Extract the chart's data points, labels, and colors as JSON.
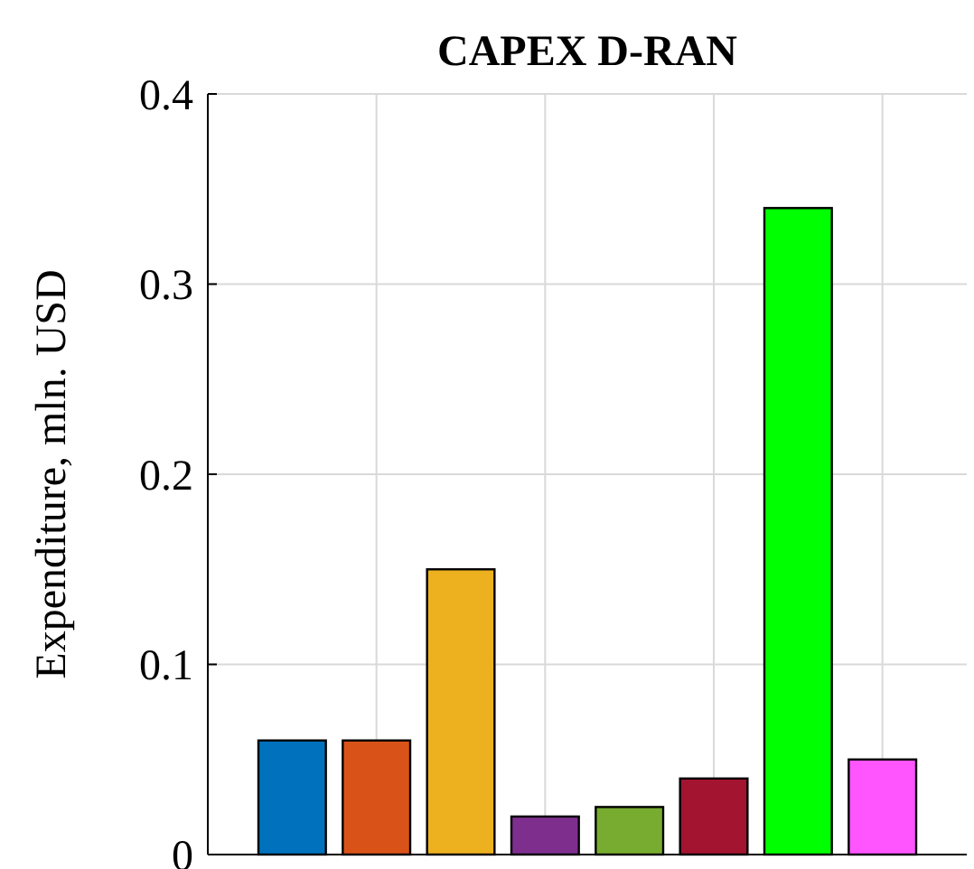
{
  "chart_data": {
    "type": "bar",
    "title": "CAPEX D-RAN",
    "ylabel": "Expenditure, mln. USD",
    "categories": [
      null,
      null,
      null,
      null,
      null,
      null,
      null,
      null
    ],
    "values": [
      0.06,
      0.06,
      0.15,
      0.02,
      0.025,
      0.04,
      0.34,
      0.05
    ],
    "colors": [
      "#0072bd",
      "#d95319",
      "#edb120",
      "#7e2f8e",
      "#77ac30",
      "#a2142f",
      "#00ff00",
      "#ff55ff"
    ],
    "ylim": [
      0,
      0.4
    ],
    "yticks": [
      {
        "value": 0,
        "label": "0"
      },
      {
        "value": 0.1,
        "label": "0.1"
      },
      {
        "value": 0.2,
        "label": "0.2"
      },
      {
        "value": 0.3,
        "label": "0.3"
      },
      {
        "value": 0.4,
        "label": "0.4"
      }
    ],
    "tick_labels": "y",
    "grid": true
  }
}
